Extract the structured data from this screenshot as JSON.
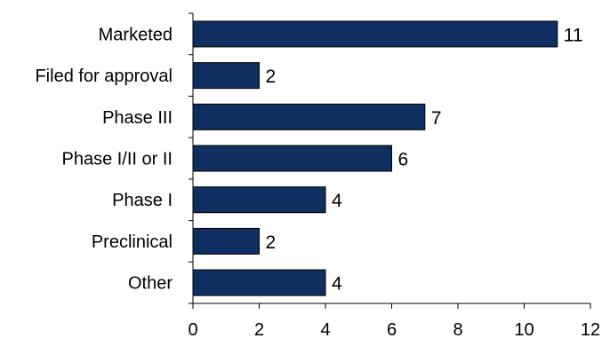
{
  "chart_data": {
    "type": "bar",
    "orientation": "horizontal",
    "categories": [
      "Marketed",
      "Filed for approval",
      "Phase III",
      "Phase I/II or II",
      "Phase I",
      "Preclinical",
      "Other"
    ],
    "values": [
      11,
      2,
      7,
      6,
      4,
      2,
      4
    ],
    "title": "",
    "xlabel": "",
    "ylabel": "",
    "xlim": [
      0,
      12
    ],
    "xticks": [
      0,
      2,
      4,
      6,
      8,
      10,
      12
    ],
    "grid": false,
    "legend": "none",
    "bar_color": "#0e2f60",
    "bar_outline": "#000000",
    "data_labels": true
  }
}
